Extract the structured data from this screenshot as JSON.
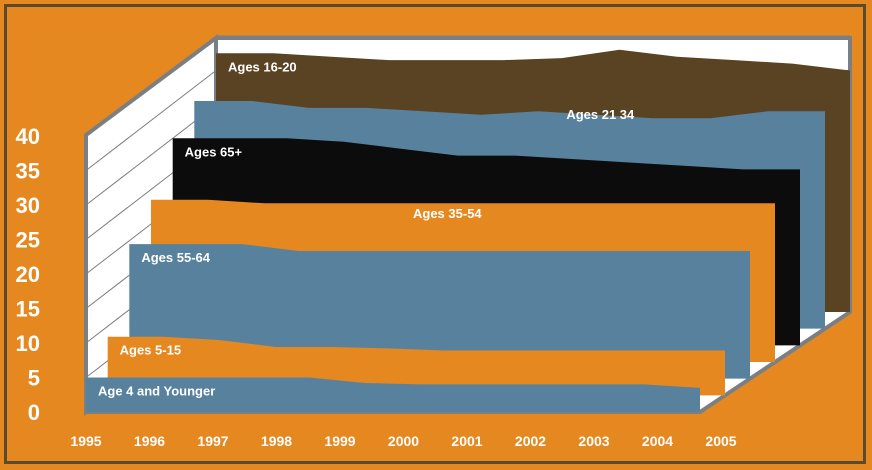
{
  "chart_data": {
    "type": "area",
    "title": "",
    "xlabel": "",
    "ylabel": "",
    "ylim": [
      0,
      40
    ],
    "grid": true,
    "y_ticks": [
      "0",
      "5",
      "10",
      "15",
      "20",
      "25",
      "30",
      "35",
      "40"
    ],
    "x_ticks": [
      "1995",
      "1996",
      "1997",
      "1998",
      "1999",
      "2000",
      "2001",
      "2002",
      "2003",
      "2004",
      "2005"
    ],
    "colors": {
      "background": "#e68820",
      "frame": "#5c4a2e",
      "plot_area": "#ffffff",
      "wall_line": "#7a7f83",
      "brown": "#5a4322",
      "blue": "#58819e",
      "black": "#0c0c0c",
      "orange": "#e68820"
    },
    "series": [
      {
        "name": "Ages 16-20",
        "color": "#5a4322",
        "values": [
          37.5,
          37.5,
          37.0,
          36.5,
          36.5,
          36.5,
          36.8,
          38.0,
          37.0,
          36.5,
          36.0,
          35.0
        ]
      },
      {
        "name": "Ages 21 34",
        "color": "#58819e",
        "values": [
          33.0,
          33.0,
          32.0,
          32.0,
          31.5,
          31.0,
          31.5,
          31.0,
          30.5,
          30.5,
          31.5,
          31.5
        ]
      },
      {
        "name": "Ages 65+",
        "color": "#0c0c0c",
        "values": [
          30.0,
          30.0,
          30.0,
          29.5,
          28.5,
          27.5,
          27.5,
          27.0,
          26.5,
          26.0,
          25.5,
          25.5
        ]
      },
      {
        "name": "Ages 35-54",
        "color": "#e68820",
        "values": [
          23.5,
          23.5,
          23.0,
          23.0,
          23.0,
          23.0,
          23.0,
          23.0,
          23.0,
          23.0,
          23.0,
          23.0
        ]
      },
      {
        "name": "Ages 55-64",
        "color": "#58819e",
        "values": [
          19.5,
          19.5,
          19.5,
          18.5,
          18.5,
          18.5,
          18.5,
          18.5,
          18.5,
          18.5,
          18.5,
          18.5
        ]
      },
      {
        "name": "Ages 5-15",
        "color": "#e68820",
        "values": [
          8.5,
          8.5,
          8.0,
          7.0,
          7.0,
          6.8,
          6.5,
          6.5,
          6.5,
          6.5,
          6.5,
          6.5
        ]
      },
      {
        "name": "Age 4 and Younger",
        "color": "#58819e",
        "values": [
          5.0,
          5.0,
          5.0,
          5.0,
          5.0,
          4.2,
          4.0,
          4.0,
          4.0,
          4.0,
          4.0,
          3.5
        ]
      }
    ]
  }
}
